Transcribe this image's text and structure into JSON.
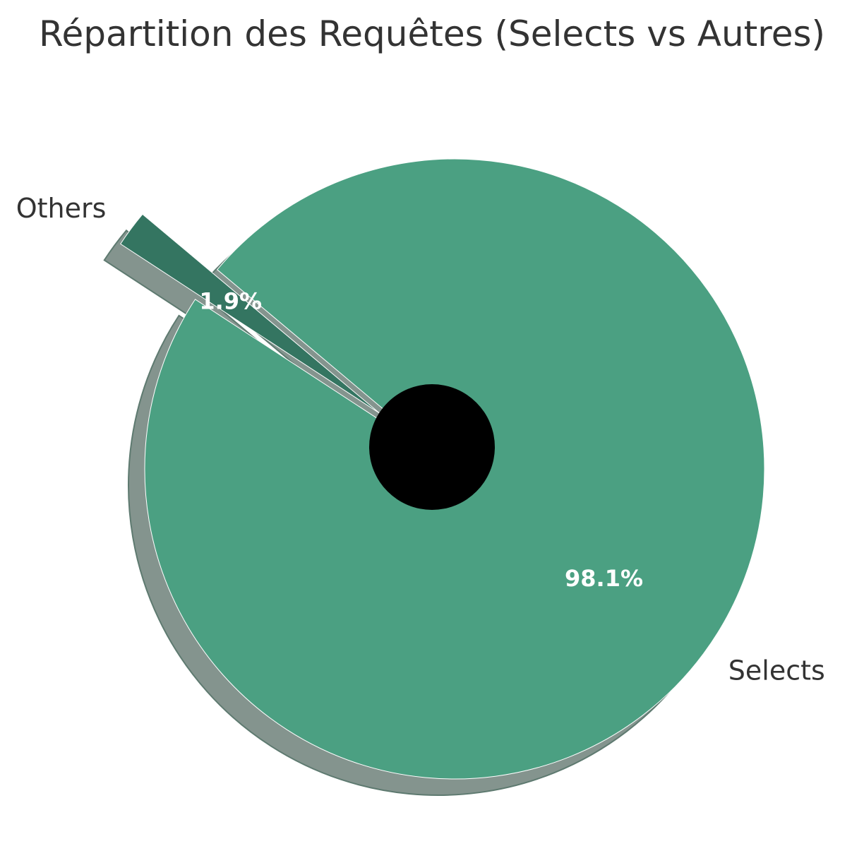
{
  "chart_data": {
    "type": "pie",
    "title": "Répartition des Requêtes (Selects vs Autres)",
    "categories": [
      "Others",
      "Selects"
    ],
    "values": [
      1.9,
      98.1
    ],
    "percent_labels": [
      "1.9%",
      "98.1%"
    ],
    "colors": [
      "#347561",
      "#4ba082"
    ],
    "explode": [
      0.3,
      0
    ],
    "shadow": true,
    "shadow_color": "#84948e",
    "center_circle_color": "#000000",
    "edge_color": "#ffffff",
    "start_angle": 140,
    "direction": "counterclockwise"
  }
}
